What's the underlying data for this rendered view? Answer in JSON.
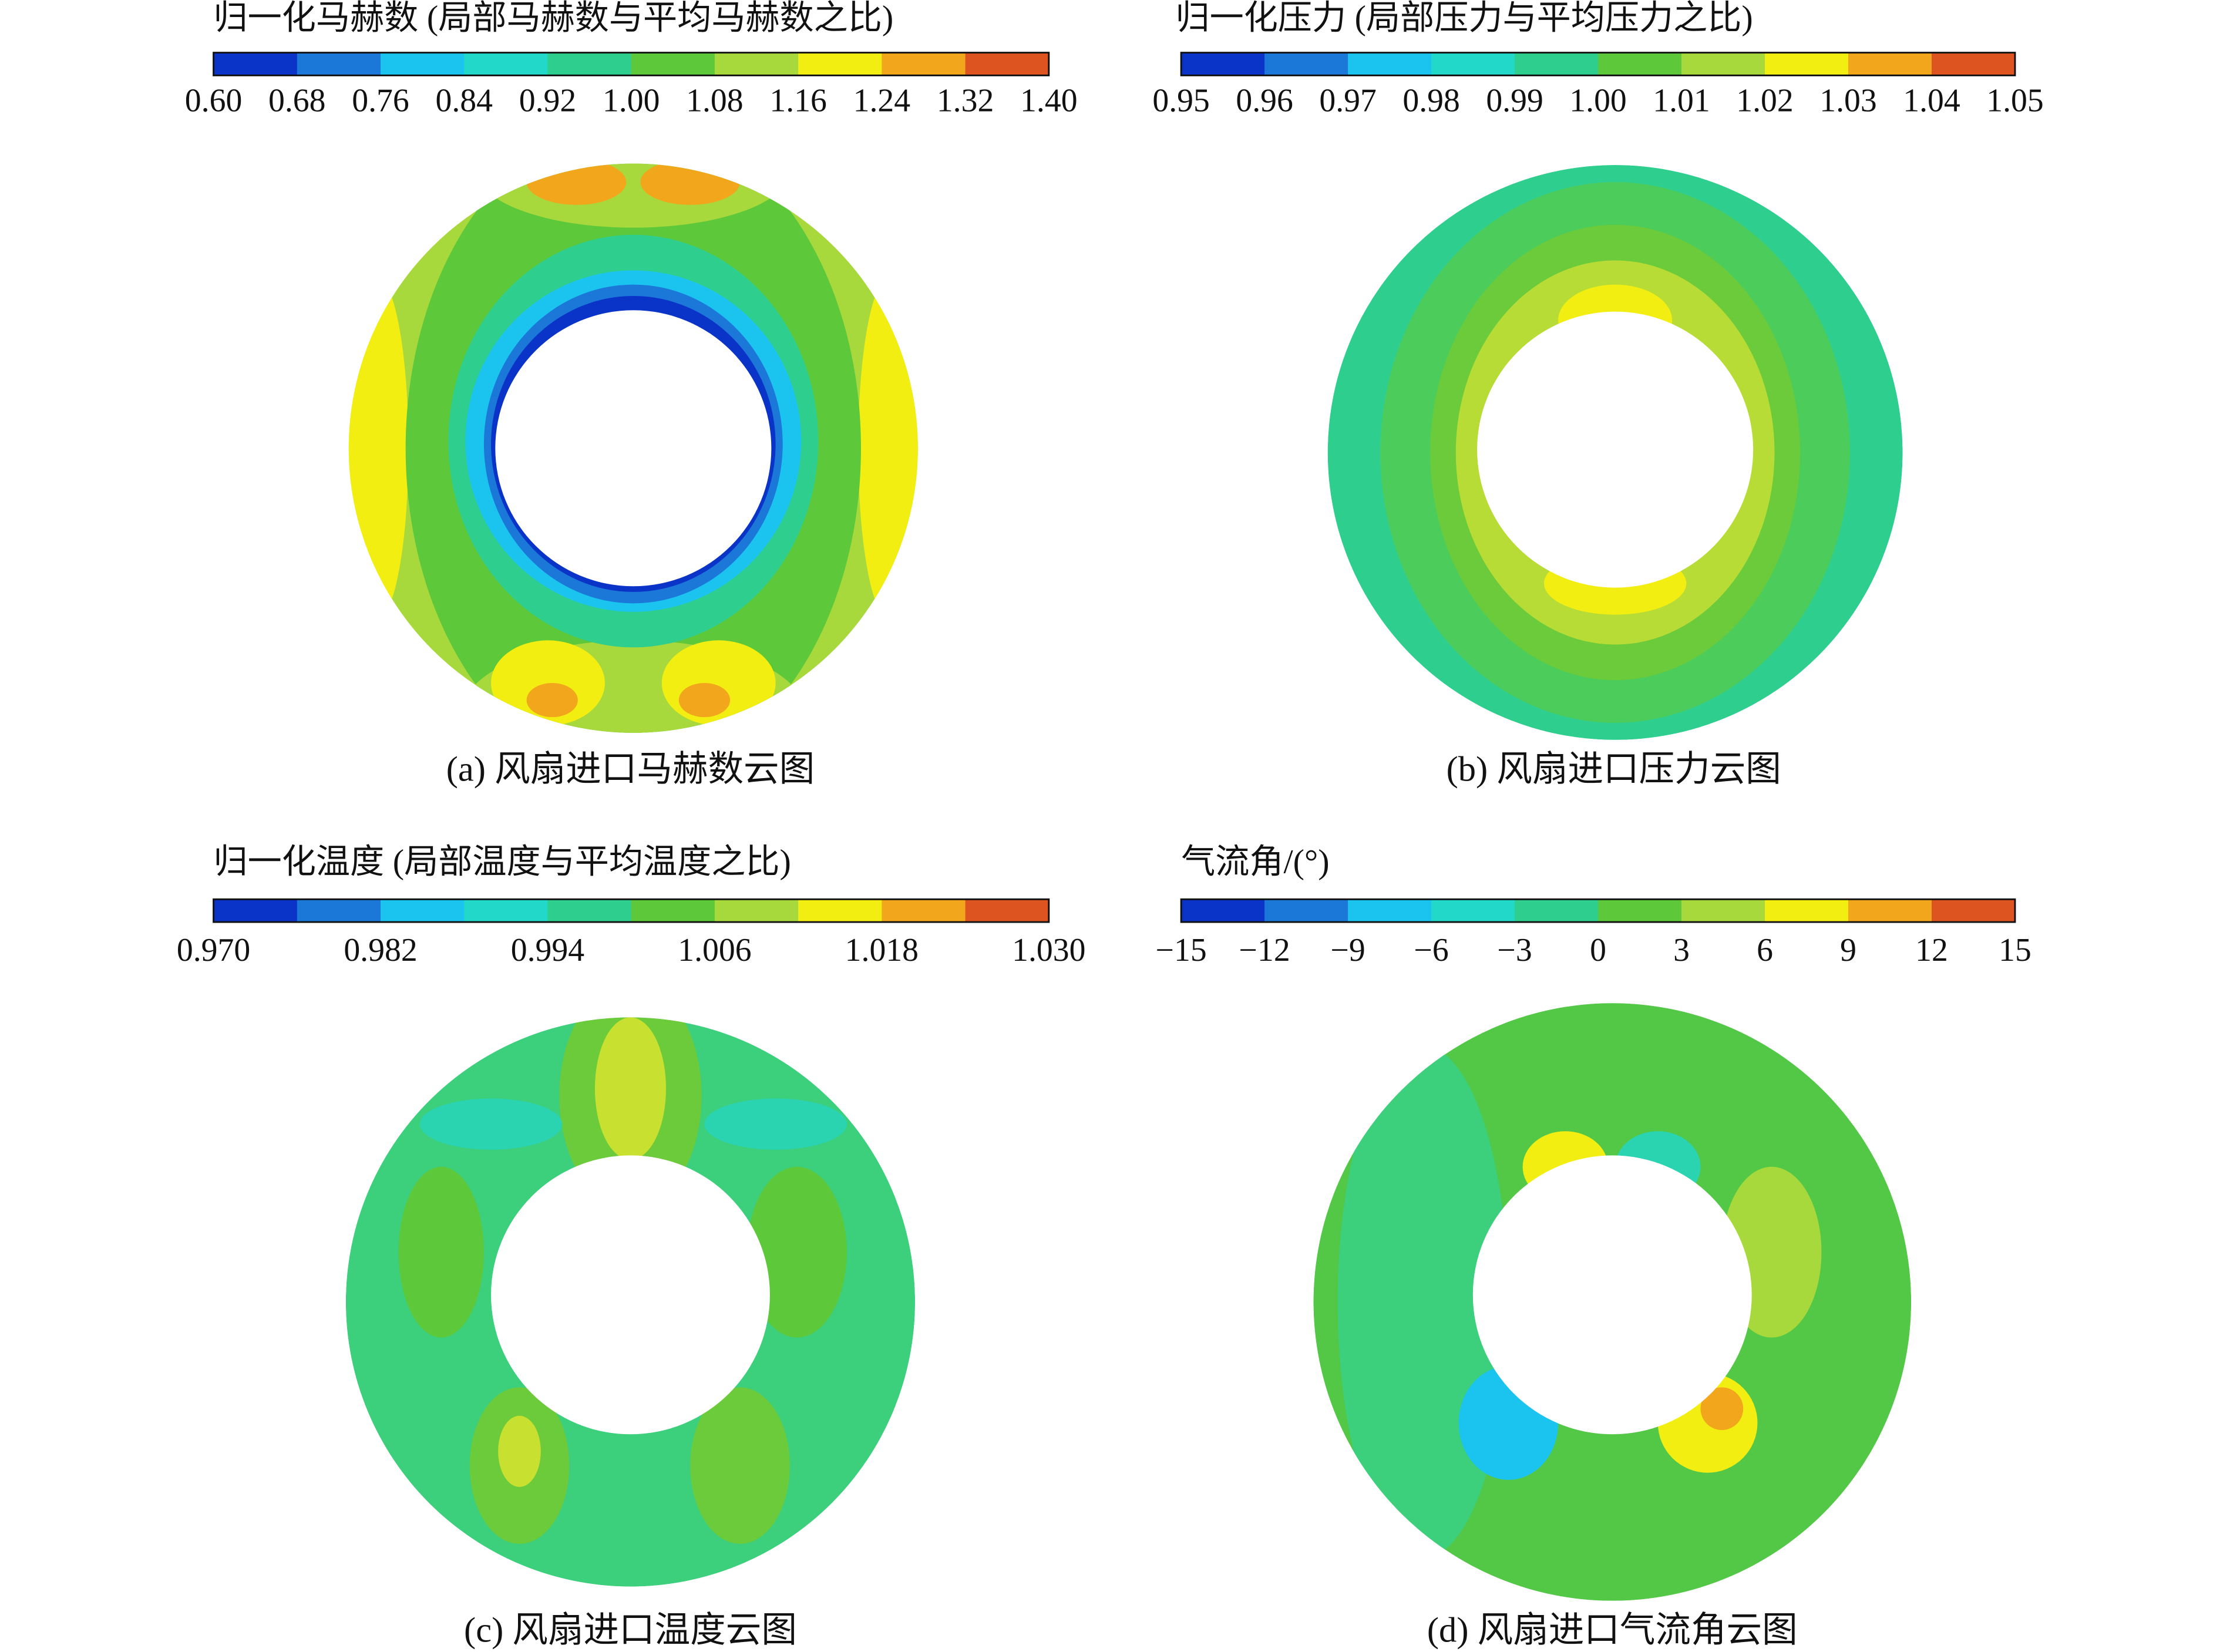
{
  "colorbar_colors": [
    "#0a33c8",
    "#1c78d8",
    "#1bc4ee",
    "#22d8c8",
    "#2ecf8e",
    "#5cc83a",
    "#a8d93c",
    "#f2ee12",
    "#f2a61c",
    "#de5420"
  ],
  "panels": [
    {
      "colorbar_title": "归一化马赫数 (局部马赫数与平均马赫数之比)",
      "colorbar_ticks": [
        "0.60",
        "0.68",
        "0.76",
        "0.84",
        "0.92",
        "1.00",
        "1.08",
        "1.16",
        "1.24",
        "1.32",
        "1.40"
      ],
      "caption": "(a) 风扇进口马赫数云图"
    },
    {
      "colorbar_title": "归一化压力 (局部压力与平均压力之比)",
      "colorbar_ticks": [
        "0.95",
        "0.96",
        "0.97",
        "0.98",
        "0.99",
        "1.00",
        "1.01",
        "1.02",
        "1.03",
        "1.04",
        "1.05"
      ],
      "caption": "(b) 风扇进口压力云图"
    },
    {
      "colorbar_title": "归一化温度 (局部温度与平均温度之比)",
      "colorbar_ticks": [
        "0.970",
        "0.982",
        "0.994",
        "1.006",
        "1.018",
        "1.030"
      ],
      "caption": "(c) 风扇进口温度云图"
    },
    {
      "colorbar_title": "气流角/(°)",
      "colorbar_ticks": [
        "−15",
        "−12",
        "−9",
        "−6",
        "−3",
        "0",
        "3",
        "6",
        "9",
        "12",
        "15"
      ],
      "caption": "(d) 风扇进口气流角云图"
    }
  ]
}
